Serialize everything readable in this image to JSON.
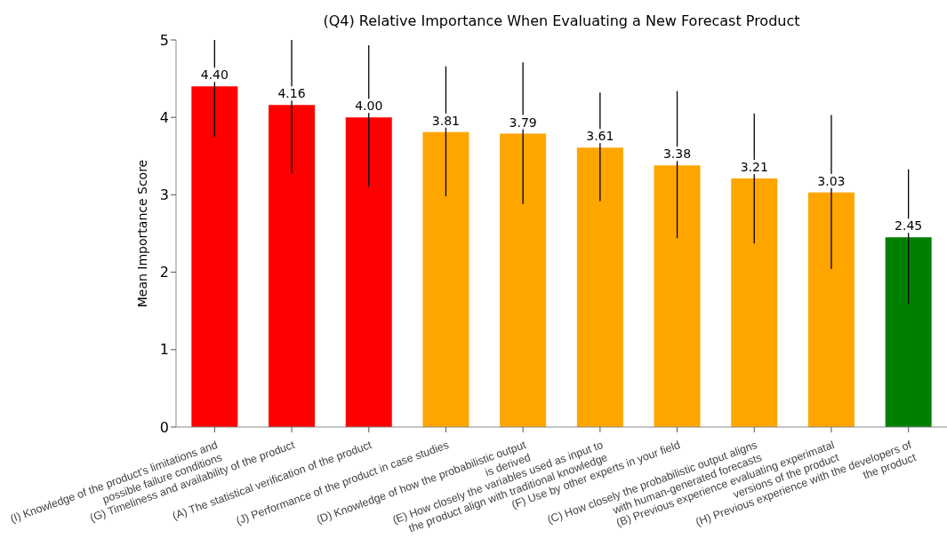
{
  "chart_data": {
    "type": "bar",
    "title": "(Q4) Relative Importance When Evaluating a New Forecast Product",
    "ylabel": "Mean Importance Score",
    "categories": [
      "(I) Knowledge of the product's limitations and\npossible failure conditions",
      "(G) Timeliness and availability of the product",
      "(A) The statistical verification of the product",
      "(J) Performance of the product in case studies",
      "(D) Knowledge of how the probabilistic output\nis derived",
      "(E) How closely the variables used as input to\nthe product align with traditional knowledge",
      "(F) Use by other experts in your field",
      "(C) How closely the probabilistic output aligns\nwith human-generated forecasts",
      "(B) Previous experience evaluating experimatal\nversions of the product",
      "(H) Previous experience with the developers of\nthe product"
    ],
    "values": [
      4.4,
      4.16,
      4.0,
      3.81,
      3.79,
      3.61,
      3.38,
      3.21,
      3.03,
      2.45
    ],
    "colors": [
      "#ff0000",
      "#ff0000",
      "#ff0000",
      "#ffa500",
      "#ffa500",
      "#ffa500",
      "#ffa500",
      "#ffa500",
      "#ffa500",
      "#008000"
    ],
    "errors": [
      [
        3.75,
        5.0
      ],
      [
        3.27,
        5.0
      ],
      [
        3.1,
        4.93
      ],
      [
        2.98,
        4.66
      ],
      [
        2.88,
        4.71
      ],
      [
        2.92,
        4.32
      ],
      [
        2.44,
        4.34
      ],
      [
        2.37,
        4.05
      ],
      [
        2.04,
        4.03
      ],
      [
        1.59,
        3.33
      ]
    ],
    "value_labels": [
      "4.40",
      "4.16",
      "4.00",
      "3.81",
      "3.79",
      "3.61",
      "3.38",
      "3.21",
      "3.03",
      "2.45"
    ],
    "ylim": [
      0,
      5
    ],
    "yticks": [
      0,
      1,
      2,
      3,
      4,
      5
    ],
    "grid": false,
    "legend": false
  }
}
